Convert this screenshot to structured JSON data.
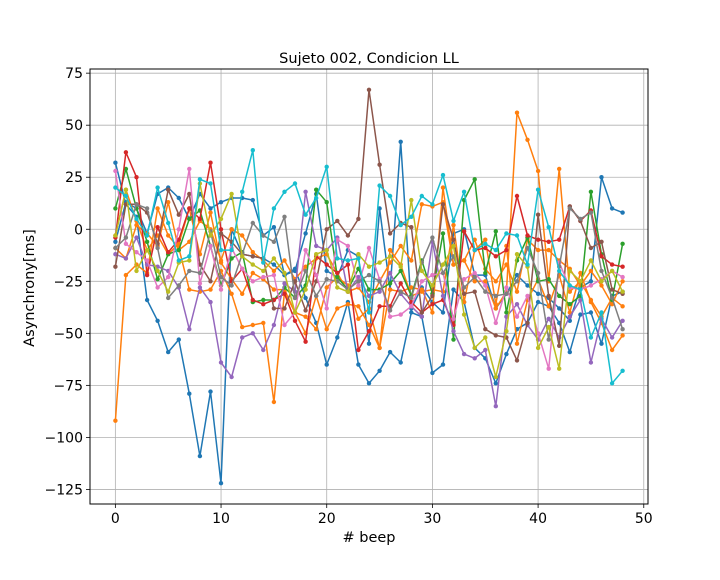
{
  "chart_data": {
    "type": "line",
    "title": "Sujeto 002, Condicion LL",
    "xlabel": "# beep",
    "ylabel": "Asynchrony[ms]",
    "xlim": [
      -2.4,
      50.4
    ],
    "ylim": [
      -132,
      77
    ],
    "xticks": [
      0,
      10,
      20,
      30,
      40,
      50
    ],
    "yticks": [
      -125,
      -100,
      -75,
      -50,
      -25,
      0,
      25,
      50,
      75
    ],
    "grid": true,
    "markers": true,
    "x": [
      0,
      1,
      2,
      3,
      4,
      5,
      6,
      7,
      8,
      9,
      10,
      11,
      12,
      13,
      14,
      15,
      16,
      17,
      18,
      19,
      20,
      21,
      22,
      23,
      24,
      25,
      26,
      27,
      28,
      29,
      30,
      31,
      32,
      33,
      34,
      35,
      36,
      37,
      38,
      39,
      40,
      41,
      42,
      43,
      44,
      45,
      46,
      47,
      48
    ],
    "series": [
      {
        "color": "#1f77b4",
        "values": [
          32,
          12,
          6,
          -34,
          -44,
          -59,
          -53,
          -79,
          -109,
          -78,
          -122,
          0,
          -12,
          -13,
          -14,
          -17,
          -22,
          -19,
          -33,
          -45,
          -65,
          -52,
          -35,
          -65,
          -74,
          -68,
          -59,
          -64,
          -40,
          -42,
          -69,
          -65,
          -29,
          -35,
          -57,
          -62,
          -74,
          -60,
          -48,
          -45,
          -35,
          -37,
          -45,
          -59,
          -41,
          -40,
          -55,
          -32,
          -30
        ]
      },
      {
        "color": "#1f77b4",
        "values": [
          -6,
          13,
          10,
          -2,
          17,
          20,
          15,
          5,
          17,
          10,
          13,
          15,
          15,
          14,
          -3,
          1,
          -22,
          -20,
          -2,
          17,
          -20,
          -23,
          -10,
          -13,
          -55,
          10,
          -29,
          42,
          -38,
          -28,
          -35,
          -40,
          -2,
          0,
          -22,
          -22,
          -38,
          -31,
          -22,
          -27,
          -31,
          -33,
          -38,
          -44,
          -28,
          -25,
          25,
          10,
          8
        ]
      },
      {
        "color": "#ff7f0e",
        "values": [
          -92,
          -22,
          -17,
          -21,
          10,
          -3,
          -9,
          -29,
          -30,
          -29,
          -20,
          -31,
          -47,
          -46,
          -45,
          -83,
          -30,
          -40,
          -42,
          -48,
          -28,
          -23,
          -27,
          -43,
          -38,
          -57,
          -29,
          -30,
          -28,
          -29,
          -40,
          20,
          -17,
          -15,
          -25,
          -25,
          -38,
          -30,
          56,
          43,
          28,
          -25,
          29,
          -30,
          -25,
          -34,
          -42,
          -33,
          -37
        ]
      },
      {
        "color": "#ff7f0e",
        "values": [
          -3,
          19,
          4,
          -10,
          -3,
          -12,
          -7,
          10,
          -12,
          8,
          -16,
          -24,
          -31,
          -21,
          -24,
          -29,
          -29,
          -40,
          -50,
          -32,
          -48,
          -38,
          -36,
          -37,
          -46,
          -57,
          -10,
          -17,
          -32,
          -30,
          -29,
          -30,
          2,
          -35,
          -10,
          -5,
          -36,
          -8,
          -55,
          -34,
          -24,
          -37,
          -22,
          -40,
          -21,
          -35,
          -45,
          -58,
          -51
        ]
      },
      {
        "color": "#ff7f0e",
        "values": [
          -9,
          -14,
          2,
          -2,
          -8,
          13,
          -10,
          -6,
          4,
          0,
          -15,
          0,
          -3,
          -11,
          -15,
          -20,
          -15,
          -24,
          -18,
          -14,
          -12,
          -21,
          -30,
          -28,
          -35,
          -25,
          -16,
          -8,
          -15,
          12,
          11,
          13,
          -17,
          -15,
          -5,
          -19,
          -25,
          -17,
          -30,
          -5,
          -10,
          -10,
          -15,
          -19,
          -27,
          -20,
          -27,
          -36,
          -25
        ]
      },
      {
        "color": "#2ca02c",
        "values": [
          10,
          29,
          10,
          -6,
          -24,
          -12,
          -10,
          5,
          9,
          -8,
          -27,
          -14,
          -11,
          -35,
          -34,
          -34,
          -28,
          -33,
          -27,
          19,
          13,
          -23,
          -29,
          -19,
          -29,
          -29,
          -26,
          -20,
          -32,
          -15,
          -31,
          -2,
          -53,
          14,
          24,
          -21,
          -1,
          -40,
          -15,
          -4,
          -25,
          -24,
          -32,
          -36,
          -32,
          18,
          -12,
          -34,
          -7
        ]
      },
      {
        "color": "#d62728",
        "values": [
          -4,
          37,
          25,
          -22,
          1,
          -11,
          -5,
          10,
          5,
          32,
          0,
          -25,
          -19,
          -34,
          -36,
          -34,
          -31,
          -44,
          -54,
          -13,
          -17,
          -21,
          -17,
          -58,
          -49,
          -37,
          -37,
          -26,
          -35,
          -40,
          -36,
          -34,
          -46,
          -1,
          -10,
          -9,
          -13,
          -10,
          16,
          -3,
          -5,
          -6,
          -5,
          11,
          4,
          9,
          -13,
          -17,
          -18
        ]
      },
      {
        "color": "#9467bd",
        "values": [
          -12,
          -14,
          -4,
          -17,
          -18,
          -20,
          -28,
          -48,
          -28,
          -35,
          -64,
          -71,
          -52,
          -50,
          -58,
          -46,
          -26,
          -30,
          18,
          -8,
          -10,
          -4,
          -30,
          -23,
          -32,
          -30,
          -21,
          -31,
          -37,
          -42,
          -6,
          -32,
          -49,
          -60,
          -62,
          -58,
          -85,
          -42,
          -36,
          -46,
          -53,
          -43,
          -52,
          -42,
          -34,
          -64,
          -43,
          -52,
          -44
        ]
      },
      {
        "color": "#8c564b",
        "values": [
          -18,
          12,
          12,
          8,
          -7,
          19,
          7,
          17,
          -17,
          -25,
          -2,
          -6,
          -12,
          -13,
          -14,
          -38,
          -38,
          -25,
          -39,
          -25,
          0,
          4,
          -3,
          5,
          67,
          31,
          -2,
          3,
          1,
          -40,
          -32,
          12,
          -5,
          -31,
          -30,
          -48,
          -51,
          -52,
          -63,
          -45,
          7,
          -32,
          -56,
          11,
          4,
          -9,
          -6,
          -29,
          -31
        ]
      },
      {
        "color": "#e377c2",
        "values": [
          28,
          -7,
          -11,
          -15,
          -28,
          -23,
          0,
          29,
          -26,
          -8,
          -29,
          -9,
          -19,
          -25,
          -23,
          -22,
          -46,
          -40,
          -10,
          -22,
          -38,
          -5,
          -8,
          -27,
          -9,
          -24,
          -42,
          -41,
          -37,
          -25,
          -22,
          -21,
          -43,
          -24,
          -21,
          -27,
          -45,
          -28,
          -42,
          -32,
          -50,
          -67,
          -16,
          -28,
          -29,
          -27,
          -24,
          -20,
          -23
        ]
      },
      {
        "color": "#7f7f7f",
        "values": [
          -9,
          -4,
          12,
          10,
          -9,
          -33,
          -27,
          -20,
          -21,
          -1,
          -23,
          -27,
          -12,
          3,
          -3,
          -6,
          6,
          -33,
          -20,
          -32,
          -24,
          -25,
          -29,
          -25,
          -22,
          -25,
          -39,
          -30,
          -33,
          -16,
          -4,
          -21,
          -13,
          -28,
          -23,
          -30,
          -32,
          -31,
          -25,
          -9,
          -21,
          -53,
          -18,
          10,
          5,
          8,
          -20,
          -33,
          -48
        ]
      },
      {
        "color": "#bcbd22",
        "values": [
          -3,
          19,
          -20,
          -10,
          -20,
          -30,
          -16,
          -15,
          22,
          -3,
          5,
          17,
          -13,
          -17,
          -20,
          -14,
          -21,
          -40,
          -29,
          -12,
          -10,
          -28,
          -30,
          -12,
          -18,
          -16,
          -13,
          -18,
          14,
          -20,
          -27,
          -17,
          -8,
          -41,
          -57,
          -52,
          -71,
          -49,
          -12,
          -18,
          -57,
          -47,
          -67,
          -20,
          -25,
          -15,
          -25,
          -20,
          -30
        ]
      },
      {
        "color": "#17becf",
        "values": [
          20,
          16,
          5,
          -3,
          20,
          3,
          -15,
          -13,
          24,
          22,
          -10,
          -10,
          18,
          38,
          -16,
          10,
          18,
          22,
          7,
          15,
          30,
          -14,
          -15,
          -14,
          -40,
          21,
          16,
          2,
          6,
          16,
          12,
          26,
          4,
          18,
          -10,
          -7,
          -10,
          -2,
          -3,
          -17,
          19,
          1,
          -20,
          -27,
          -29,
          -52,
          -40,
          -74,
          -68
        ]
      }
    ]
  }
}
